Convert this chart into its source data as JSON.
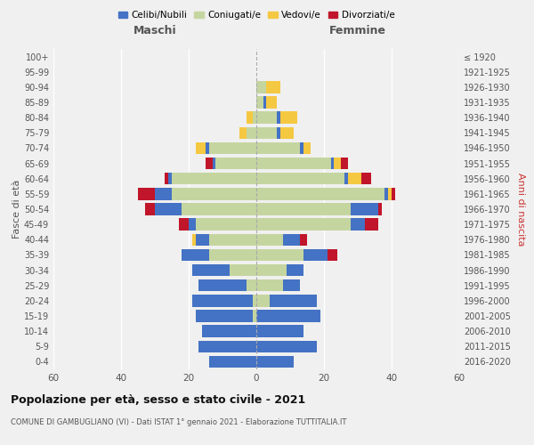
{
  "age_groups": [
    "0-4",
    "5-9",
    "10-14",
    "15-19",
    "20-24",
    "25-29",
    "30-34",
    "35-39",
    "40-44",
    "45-49",
    "50-54",
    "55-59",
    "60-64",
    "65-69",
    "70-74",
    "75-79",
    "80-84",
    "85-89",
    "90-94",
    "95-99",
    "100+"
  ],
  "birth_years": [
    "2016-2020",
    "2011-2015",
    "2006-2010",
    "2001-2005",
    "1996-2000",
    "1991-1995",
    "1986-1990",
    "1981-1985",
    "1976-1980",
    "1971-1975",
    "1966-1970",
    "1961-1965",
    "1956-1960",
    "1951-1955",
    "1946-1950",
    "1941-1945",
    "1936-1940",
    "1931-1935",
    "1926-1930",
    "1921-1925",
    "≤ 1920"
  ],
  "maschi": {
    "celibi": [
      14,
      17,
      16,
      17,
      18,
      14,
      11,
      8,
      4,
      2,
      8,
      5,
      1,
      1,
      1,
      0,
      0,
      0,
      0,
      0,
      0
    ],
    "coniugati": [
      0,
      0,
      0,
      1,
      1,
      3,
      8,
      14,
      14,
      18,
      22,
      25,
      25,
      12,
      14,
      3,
      1,
      0,
      0,
      0,
      0
    ],
    "vedovi": [
      0,
      0,
      0,
      0,
      0,
      0,
      0,
      0,
      1,
      0,
      0,
      0,
      0,
      0,
      3,
      2,
      2,
      0,
      0,
      0,
      0
    ],
    "divorziati": [
      0,
      0,
      0,
      0,
      0,
      0,
      0,
      0,
      0,
      3,
      3,
      5,
      1,
      2,
      0,
      0,
      0,
      0,
      0,
      0,
      0
    ]
  },
  "femmine": {
    "nubili": [
      11,
      18,
      14,
      19,
      14,
      5,
      5,
      7,
      5,
      4,
      8,
      1,
      1,
      1,
      1,
      1,
      1,
      1,
      0,
      0,
      0
    ],
    "coniugate": [
      0,
      0,
      0,
      0,
      4,
      8,
      9,
      14,
      8,
      28,
      28,
      38,
      26,
      22,
      13,
      6,
      6,
      2,
      3,
      0,
      0
    ],
    "vedove": [
      0,
      0,
      0,
      0,
      0,
      0,
      0,
      0,
      0,
      0,
      0,
      1,
      4,
      2,
      2,
      4,
      5,
      3,
      4,
      0,
      0
    ],
    "divorziate": [
      0,
      0,
      0,
      0,
      0,
      0,
      0,
      3,
      2,
      4,
      1,
      1,
      3,
      2,
      0,
      0,
      0,
      0,
      0,
      0,
      0
    ]
  },
  "colors": {
    "celibi": "#4472c4",
    "coniugati": "#c5d5a0",
    "vedovi": "#f5c842",
    "divorziati": "#c0152a"
  },
  "xlim": 60,
  "title": "Popolazione per età, sesso e stato civile - 2021",
  "subtitle": "COMUNE DI GAMBUGLIANO (VI) - Dati ISTAT 1° gennaio 2021 - Elaborazione TUTTITALIA.IT",
  "ylabel": "Fasce di età",
  "ylabel_right": "Anni di nascita",
  "xlabel_maschi": "Maschi",
  "xlabel_femmine": "Femmine",
  "legend_labels": [
    "Celibi/Nubili",
    "Coniugati/e",
    "Vedovi/e",
    "Divorziati/e"
  ],
  "background_color": "#f0f0f0",
  "grid_color": "#ffffff",
  "text_color": "#555555",
  "title_color": "#111111",
  "right_label_color": "#cc3333"
}
